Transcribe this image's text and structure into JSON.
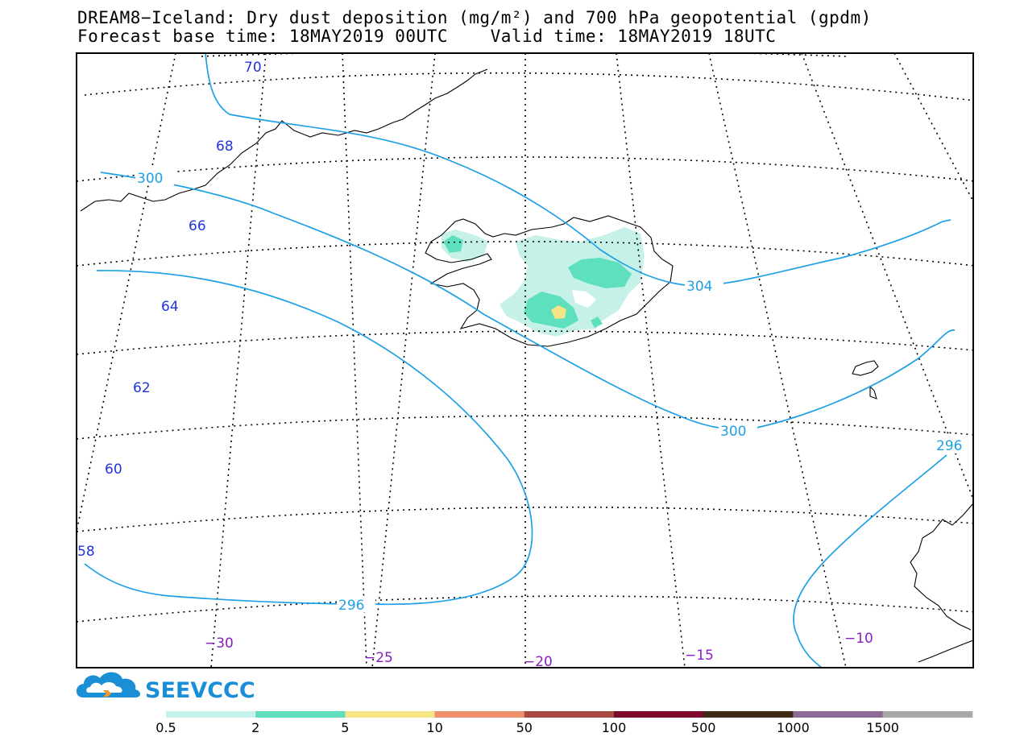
{
  "header": {
    "title_line1": "DREAM8−Iceland: Dry dust deposition (mg/m²) and 700 hPa geopotential (gpdm)",
    "title_line2": "Forecast base time: 18MAY2019 00UTC    Valid time: 18MAY2019 18UTC"
  },
  "map": {
    "lat_labels": [
      "70",
      "68",
      "66",
      "64",
      "62",
      "60",
      "58"
    ],
    "lon_labels": [
      "−30",
      "−25",
      "−20",
      "−15",
      "−10"
    ],
    "contour_labels": [
      "300",
      "304",
      "300",
      "296",
      "296"
    ],
    "contour_color": "#1ea0e6",
    "lat_label_color": "#2233dd",
    "lon_label_color": "#8a1fc0"
  },
  "logo": {
    "text": "SEEVCCC"
  },
  "colorbar": {
    "labels": [
      "0.5",
      "2",
      "5",
      "10",
      "50",
      "100",
      "500",
      "1000",
      "1500"
    ],
    "colors": [
      "#c6f1e8",
      "#5edfbe",
      "#f5e584",
      "#ef8f6e",
      "#a84942",
      "#7d0a2b",
      "#3f2a15",
      "#8e6a97",
      "#a8a8a8"
    ]
  }
}
